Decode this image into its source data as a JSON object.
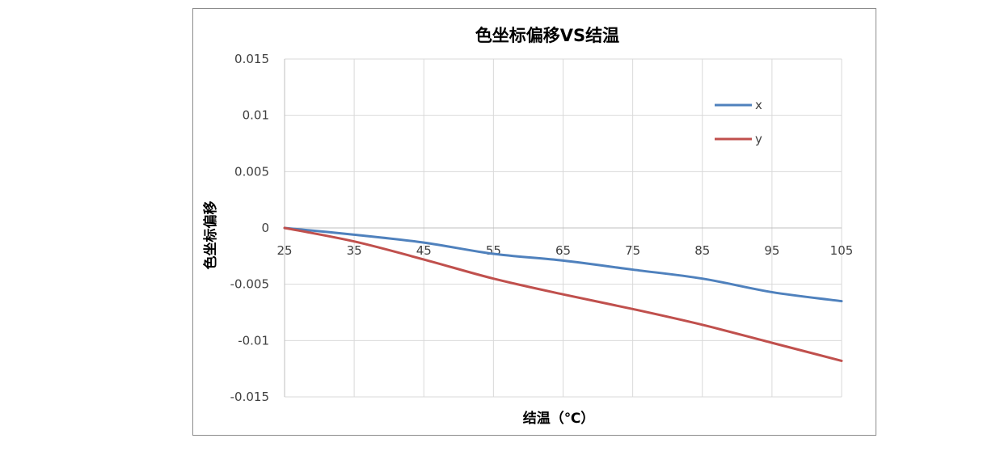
{
  "chart_data": {
    "type": "line",
    "title": "色坐标偏移VS结温",
    "xlabel": "结温（℃）",
    "ylabel": "色坐标偏移",
    "x": [
      25,
      35,
      45,
      55,
      65,
      75,
      85,
      95,
      105
    ],
    "x_tick_labels": [
      "25",
      "35",
      "45",
      "55",
      "65",
      "75",
      "85",
      "95",
      "105"
    ],
    "ylim": [
      -0.015,
      0.015
    ],
    "y_tick_labels": [
      "0.015",
      "0.01",
      "0.005",
      "0",
      "-0.005",
      "-0.01",
      "-0.015"
    ],
    "y_ticks": [
      0.015,
      0.01,
      0.005,
      0,
      -0.005,
      -0.01,
      -0.015
    ],
    "grid": true,
    "legend_position": "top-right",
    "series": [
      {
        "name": "x",
        "color": "#4f81bd",
        "values": [
          0,
          -0.0006,
          -0.0013,
          -0.0023,
          -0.0029,
          -0.0037,
          -0.0045,
          -0.0057,
          -0.0065
        ]
      },
      {
        "name": "y",
        "color": "#c0504d",
        "values": [
          0,
          -0.0012,
          -0.0028,
          -0.0045,
          -0.0059,
          -0.0072,
          -0.0086,
          -0.0102,
          -0.0118
        ]
      }
    ]
  }
}
